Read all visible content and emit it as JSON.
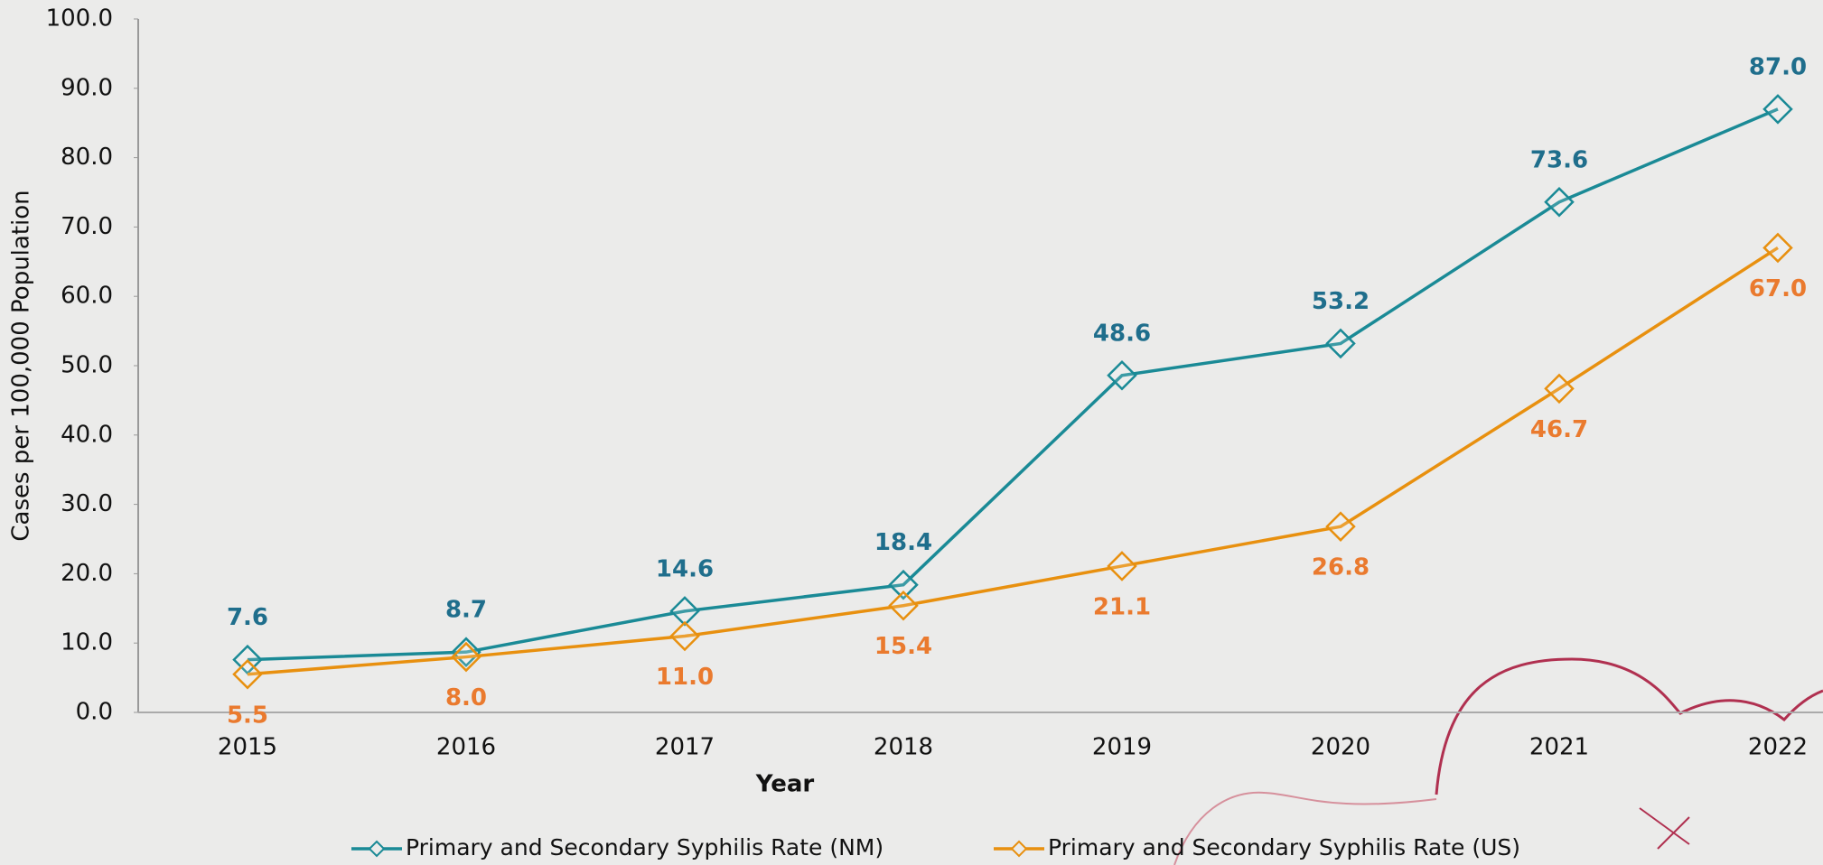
{
  "chart_data": {
    "type": "line",
    "x_label": "Year",
    "y_label": "Cases per 100,000 Population",
    "categories": [
      "2015",
      "2016",
      "2017",
      "2018",
      "2019",
      "2020",
      "2021",
      "2022"
    ],
    "series": [
      {
        "name": "Primary and Secondary Syphilis Rate (NM)",
        "color": "#1a8a96",
        "label_color": "#1f6e8c",
        "values": [
          7.6,
          8.7,
          14.6,
          18.4,
          48.6,
          53.2,
          73.6,
          87.0
        ],
        "value_labels": [
          "7.6",
          "8.7",
          "14.6",
          "18.4",
          "48.6",
          "53.2",
          "73.6",
          "87.0"
        ]
      },
      {
        "name": "Primary and Secondary Syphilis Rate (US)",
        "color": "#e8900f",
        "label_color": "#ea7a2e",
        "values": [
          5.5,
          8.0,
          11.0,
          15.4,
          21.1,
          26.8,
          46.7,
          67.0
        ],
        "value_labels": [
          "5.5",
          "8.0",
          "11.0",
          "15.4",
          "21.1",
          "26.8",
          "46.7",
          "67.0"
        ]
      }
    ],
    "ylim": [
      0,
      100
    ],
    "yticks": [
      {
        "value": 0,
        "label": "0.0"
      },
      {
        "value": 10,
        "label": "10.0"
      },
      {
        "value": 20,
        "label": "20.0"
      },
      {
        "value": 30,
        "label": "30.0"
      },
      {
        "value": 40,
        "label": "40.0"
      },
      {
        "value": 50,
        "label": "50.0"
      },
      {
        "value": 60,
        "label": "60.0"
      },
      {
        "value": 70,
        "label": "70.0"
      },
      {
        "value": 80,
        "label": "80.0"
      },
      {
        "value": 90,
        "label": "90.0"
      },
      {
        "value": 100,
        "label": "100.0"
      }
    ],
    "grid": false,
    "legend": "bottom"
  }
}
